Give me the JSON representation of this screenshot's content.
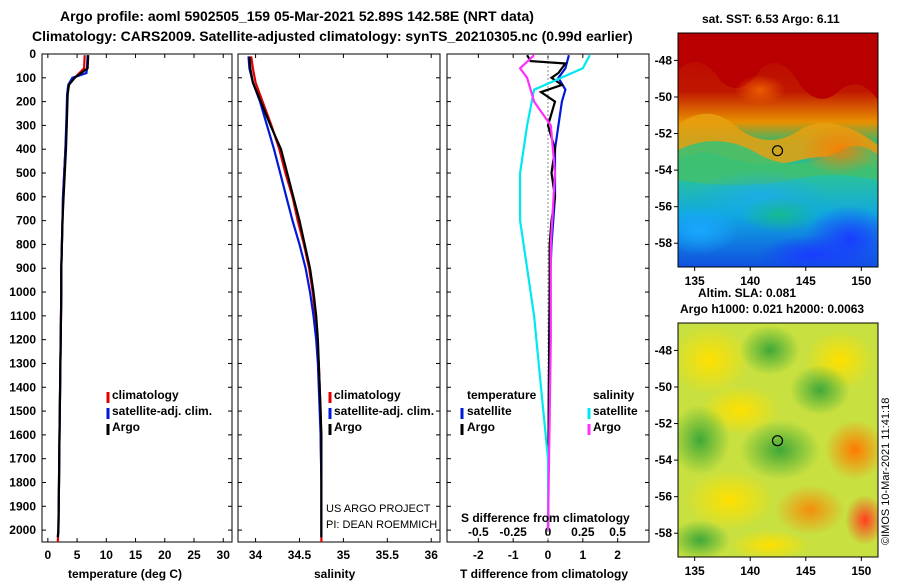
{
  "header": {
    "line1": "Argo profile: aoml 5902505_159 05-Mar-2021 52.89S 142.58E (NRT data)",
    "line2": "Climatology: CARS2009. Satellite-adjusted climatology: synTS_20210305.nc (0.99d earlier)"
  },
  "credits": {
    "line1": "US ARGO PROJECT",
    "line2": "PI: DEAN ROEMMICH",
    "imos": "©IMOS 10-Mar-2021 11:41:18"
  },
  "colors": {
    "climatology": "#e00000",
    "satellite": "#0018d8",
    "argo": "#000000",
    "satellite_s": "#00e8f0",
    "argo_s": "#ff30ff"
  },
  "chart_data": [
    {
      "type": "line",
      "id": "temperature",
      "xlabel": "temperature (deg C)",
      "ylabel": "",
      "xlim": [
        -1,
        31.5
      ],
      "ylim": [
        2050,
        0
      ],
      "xticks": [
        0,
        5,
        10,
        15,
        20,
        25,
        30
      ],
      "yticks": [
        0,
        100,
        200,
        300,
        400,
        500,
        600,
        700,
        800,
        900,
        1000,
        1100,
        1200,
        1300,
        1400,
        1500,
        1600,
        1700,
        1800,
        1900,
        2000
      ],
      "legend": [
        "climatology",
        "satellite-adj. clim.",
        "Argo"
      ],
      "series": [
        {
          "name": "climatology",
          "color": "#e00000",
          "points": [
            [
              6.3,
              5
            ],
            [
              6.2,
              60
            ],
            [
              4.6,
              100
            ],
            [
              3.7,
              120
            ],
            [
              3.4,
              150
            ],
            [
              3.3,
              200
            ],
            [
              3.2,
              300
            ],
            [
              3.0,
              400
            ],
            [
              2.8,
              500
            ],
            [
              2.6,
              600
            ],
            [
              2.5,
              700
            ],
            [
              2.4,
              800
            ],
            [
              2.3,
              900
            ],
            [
              2.3,
              1000
            ],
            [
              2.2,
              1200
            ],
            [
              2.1,
              1400
            ],
            [
              2.0,
              1600
            ],
            [
              1.9,
              1800
            ],
            [
              1.8,
              2000
            ],
            [
              1.7,
              2050
            ]
          ]
        },
        {
          "name": "satellite-adj. clim.",
          "color": "#0018d8",
          "points": [
            [
              6.8,
              5
            ],
            [
              6.7,
              60
            ],
            [
              6.6,
              80
            ],
            [
              4.2,
              100
            ],
            [
              3.5,
              130
            ],
            [
              3.3,
              170
            ],
            [
              3.2,
              250
            ],
            [
              3.0,
              400
            ],
            [
              2.8,
              500
            ],
            [
              2.6,
              600
            ],
            [
              2.5,
              700
            ],
            [
              2.4,
              800
            ],
            [
              2.3,
              900
            ],
            [
              2.3,
              1000
            ],
            [
              2.2,
              1200
            ],
            [
              2.1,
              1400
            ],
            [
              2.0,
              1600
            ],
            [
              1.9,
              1800
            ],
            [
              1.8,
              2000
            ],
            [
              1.7,
              2030
            ]
          ]
        },
        {
          "name": "Argo",
          "color": "#000000",
          "points": [
            [
              6.9,
              5
            ],
            [
              6.8,
              60
            ],
            [
              4.6,
              100
            ],
            [
              3.6,
              130
            ],
            [
              3.4,
              170
            ],
            [
              3.3,
              250
            ],
            [
              3.1,
              400
            ],
            [
              2.9,
              500
            ],
            [
              2.7,
              600
            ],
            [
              2.5,
              700
            ],
            [
              2.4,
              800
            ],
            [
              2.3,
              900
            ],
            [
              2.3,
              1000
            ],
            [
              2.2,
              1200
            ],
            [
              2.1,
              1400
            ],
            [
              2.0,
              1600
            ],
            [
              1.9,
              1800
            ],
            [
              1.8,
              2000
            ],
            [
              1.7,
              2030
            ]
          ]
        }
      ]
    },
    {
      "type": "line",
      "id": "salinity",
      "xlabel": "salinity",
      "ylabel": "",
      "xlim": [
        33.8,
        36.1
      ],
      "ylim": [
        2050,
        0
      ],
      "xticks": [
        34,
        34.5,
        35,
        35.5,
        36
      ],
      "xticklabels": [
        "34",
        "34.5",
        "35",
        "35.5",
        "36"
      ],
      "legend": [
        "climatology",
        "satellite-adj. clim.",
        "Argo"
      ],
      "series": [
        {
          "name": "climatology",
          "color": "#e00000",
          "points": [
            [
              33.95,
              10
            ],
            [
              33.97,
              60
            ],
            [
              34.0,
              120
            ],
            [
              34.08,
              200
            ],
            [
              34.18,
              300
            ],
            [
              34.27,
              400
            ],
            [
              34.34,
              500
            ],
            [
              34.42,
              600
            ],
            [
              34.48,
              700
            ],
            [
              34.55,
              800
            ],
            [
              34.61,
              900
            ],
            [
              34.65,
              1000
            ],
            [
              34.68,
              1100
            ],
            [
              34.7,
              1200
            ],
            [
              34.72,
              1300
            ],
            [
              34.73,
              1400
            ],
            [
              34.74,
              1500
            ],
            [
              34.74,
              1600
            ],
            [
              34.75,
              1800
            ],
            [
              34.75,
              2000
            ],
            [
              34.75,
              2050
            ]
          ]
        },
        {
          "name": "satellite-adj. clim.",
          "color": "#0018d8",
          "points": [
            [
              33.92,
              10
            ],
            [
              33.93,
              60
            ],
            [
              33.97,
              120
            ],
            [
              34.05,
              200
            ],
            [
              34.13,
              300
            ],
            [
              34.21,
              400
            ],
            [
              34.28,
              500
            ],
            [
              34.35,
              600
            ],
            [
              34.42,
              700
            ],
            [
              34.5,
              800
            ],
            [
              34.57,
              900
            ],
            [
              34.62,
              1000
            ],
            [
              34.66,
              1100
            ],
            [
              34.69,
              1200
            ],
            [
              34.71,
              1300
            ],
            [
              34.72,
              1400
            ],
            [
              34.73,
              1500
            ],
            [
              34.74,
              1600
            ],
            [
              34.75,
              1800
            ],
            [
              34.75,
              2000
            ],
            [
              34.75,
              2030
            ]
          ]
        },
        {
          "name": "Argo",
          "color": "#000000",
          "points": [
            [
              33.93,
              10
            ],
            [
              33.94,
              60
            ],
            [
              33.97,
              120
            ],
            [
              34.06,
              200
            ],
            [
              34.17,
              300
            ],
            [
              34.29,
              400
            ],
            [
              34.36,
              500
            ],
            [
              34.43,
              600
            ],
            [
              34.5,
              700
            ],
            [
              34.56,
              800
            ],
            [
              34.62,
              900
            ],
            [
              34.66,
              1000
            ],
            [
              34.69,
              1100
            ],
            [
              34.71,
              1200
            ],
            [
              34.72,
              1300
            ],
            [
              34.73,
              1400
            ],
            [
              34.74,
              1500
            ],
            [
              34.75,
              1600
            ],
            [
              34.75,
              1800
            ],
            [
              34.75,
              2000
            ],
            [
              34.75,
              2030
            ]
          ]
        }
      ]
    },
    {
      "type": "line",
      "id": "difference",
      "xlabel": "T difference from climatology",
      "xlabel2": "S difference from climatology",
      "xlim": [
        -2.9,
        2.9
      ],
      "ylim": [
        2050,
        0
      ],
      "xticks": [
        -2,
        -1,
        0,
        1,
        2
      ],
      "xticks_s": [
        -0.5,
        -0.25,
        0,
        0.25,
        0.5
      ],
      "xticklabels_s": [
        "-0.5",
        "-0.25",
        "0",
        "0.25",
        "0.5"
      ],
      "legend_left_title": "temperature",
      "legend_right_title": "salinity",
      "legend_left": [
        "satellite",
        "Argo"
      ],
      "legend_right": [
        "satellite",
        "Argo"
      ],
      "series": [
        {
          "name": "T satellite",
          "color": "#0018d8",
          "points": [
            [
              0.6,
              5
            ],
            [
              0.5,
              60
            ],
            [
              0.3,
              100
            ],
            [
              0.5,
              150
            ],
            [
              0.4,
              200
            ],
            [
              0.3,
              300
            ],
            [
              0.2,
              400
            ],
            [
              0.2,
              600
            ],
            [
              0.1,
              800
            ],
            [
              0.05,
              1000
            ],
            [
              0.02,
              1500
            ],
            [
              0.0,
              2000
            ]
          ]
        },
        {
          "name": "T Argo",
          "color": "#000000",
          "points": [
            [
              -0.6,
              5
            ],
            [
              -0.5,
              30
            ],
            [
              0.5,
              40
            ],
            [
              0.3,
              80
            ],
            [
              0.1,
              100
            ],
            [
              0.4,
              130
            ],
            [
              -0.2,
              160
            ],
            [
              0.2,
              200
            ],
            [
              0.0,
              300
            ],
            [
              0.2,
              400
            ],
            [
              0.1,
              500
            ],
            [
              0.2,
              600
            ],
            [
              0.1,
              700
            ],
            [
              0.05,
              800
            ],
            [
              0.05,
              1000
            ],
            [
              0.02,
              1500
            ],
            [
              0.0,
              2000
            ]
          ]
        },
        {
          "name": "S satellite",
          "color": "#00e8f0",
          "points": [
            [
              0.3,
              5
            ],
            [
              0.25,
              60
            ],
            [
              -0.1,
              150
            ],
            [
              -0.15,
              300
            ],
            [
              -0.2,
              500
            ],
            [
              -0.2,
              700
            ],
            [
              -0.15,
              900
            ],
            [
              -0.1,
              1100
            ],
            [
              -0.05,
              1400
            ],
            [
              0.0,
              1700
            ],
            [
              0.0,
              2000
            ]
          ]
        },
        {
          "name": "S Argo",
          "color": "#ff30ff",
          "points": [
            [
              -0.1,
              5
            ],
            [
              -0.2,
              60
            ],
            [
              -0.15,
              100
            ],
            [
              -0.1,
              200
            ],
            [
              0.02,
              300
            ],
            [
              0.05,
              500
            ],
            [
              0.02,
              800
            ],
            [
              0.02,
              1200
            ],
            [
              0.0,
              2000
            ]
          ]
        }
      ]
    },
    {
      "type": "heatmap",
      "id": "sst-map",
      "title": "sat. SST: 6.53 Argo: 6.11",
      "xticks": [
        135,
        140,
        145,
        150
      ],
      "yticks": [
        -48,
        -50,
        -52,
        -54,
        -56,
        -58
      ],
      "xlim": [
        133.5,
        151.5
      ],
      "ylim": [
        -59.3,
        -46.5
      ],
      "marker": [
        142.58,
        -52.89
      ]
    },
    {
      "type": "heatmap",
      "id": "sla-map",
      "title": "Altim. SLA: 0.081",
      "subtitle": "Argo h1000: 0.021 h2000: 0.0063",
      "xticks": [
        135,
        140,
        145,
        150
      ],
      "yticks": [
        -48,
        -50,
        -52,
        -54,
        -56,
        -58
      ],
      "xlim": [
        133.5,
        151.5
      ],
      "ylim": [
        -59.3,
        -46.5
      ],
      "marker": [
        142.58,
        -52.89
      ]
    }
  ]
}
